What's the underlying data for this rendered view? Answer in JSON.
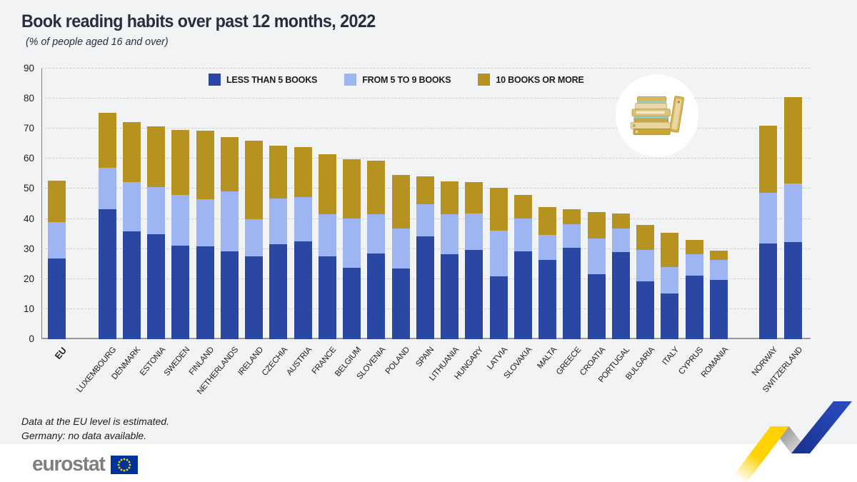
{
  "page": {
    "title": "Book reading habits over past 12 months, 2022",
    "subtitle": "(% of people aged 16 and over)"
  },
  "notes": {
    "line1": "Data at the EU level is estimated.",
    "line2": "Germany: no data available."
  },
  "logo": {
    "text": "eurostat"
  },
  "icons": {
    "books_icon": "stack-of-books",
    "flag_icon": "eu-flag",
    "zigzag_icon": "eurostat-zigzag-arrow"
  },
  "colors": {
    "background": "#f2f3f4",
    "footer_band": "#ffffff",
    "title_text": "#272e3e",
    "axis_text": "#1d1d1b",
    "less_than_5": "#2a47a3",
    "from_5_to_9": "#9db5f3",
    "ten_or_more": "#b69320",
    "logo_gray": "#7f7f7f",
    "flag_blue": "#003399",
    "star_yellow": "#ffcc00",
    "zigzag_yellow": "#ffd200",
    "zigzag_blue": "#2344ad"
  },
  "chart_data": {
    "type": "bar",
    "stacked": true,
    "title": "Book reading habits over past 12 months, 2022",
    "subtitle": "(% of people aged 16 and over)",
    "xlabel": "",
    "ylabel": "% of people aged 16 and over",
    "ylim": [
      0,
      90
    ],
    "yticks": [
      0,
      10,
      20,
      30,
      40,
      50,
      60,
      70,
      80,
      90
    ],
    "grid": true,
    "legend_position": "top-center",
    "gaps_after": [
      "EU",
      "ROMANIA"
    ],
    "categories": [
      "EU",
      "LUXEMBOURG",
      "DENMARK",
      "ESTONIA",
      "SWEDEN",
      "FINLAND",
      "NETHERLANDS",
      "IRELAND",
      "CZECHIA",
      "AUSTRIA",
      "FRANCE",
      "BELGIUM",
      "SLOVENIA",
      "POLAND",
      "SPAIN",
      "LITHUANIA",
      "HUNGARY",
      "LATVIA",
      "SLOVAKIA",
      "MALTA",
      "GREECE",
      "CROATIA",
      "PORTUGAL",
      "BULGARIA",
      "ITALY",
      "CYPRUS",
      "ROMANIA",
      "NORWAY",
      "SWITZERLAND"
    ],
    "series": [
      {
        "name": "LESS THAN 5 BOOKS",
        "color": "#2a47a3",
        "values": [
          26.8,
          43.3,
          35.9,
          34.8,
          31.2,
          30.9,
          29.2,
          27.6,
          31.6,
          32.6,
          27.6,
          23.8,
          28.4,
          23.6,
          34.1,
          28.2,
          29.7,
          20.9,
          29.2,
          26.4,
          30.4,
          21.7,
          29.0,
          19.3,
          15.2,
          21.2,
          19.8,
          31.9,
          32.3
        ]
      },
      {
        "name": "FROM 5 TO 9 BOOKS",
        "color": "#9db5f3",
        "values": [
          12.2,
          13.8,
          16.3,
          15.9,
          16.8,
          15.7,
          20.0,
          12.3,
          15.1,
          14.7,
          13.9,
          16.4,
          13.1,
          13.3,
          10.8,
          13.3,
          12.1,
          15.1,
          10.9,
          8.2,
          7.9,
          11.7,
          7.9,
          10.5,
          8.7,
          7.1,
          6.5,
          16.9,
          19.4
        ]
      },
      {
        "name": "10 BOOKS OR MORE",
        "color": "#b69320",
        "values": [
          13.8,
          18.2,
          19.9,
          20.0,
          21.6,
          22.8,
          18.0,
          26.2,
          17.6,
          16.6,
          20.1,
          19.7,
          17.9,
          17.7,
          9.3,
          10.9,
          10.5,
          14.3,
          7.9,
          9.4,
          4.9,
          8.8,
          4.9,
          8.1,
          11.5,
          4.8,
          3.1,
          22.1,
          28.8
        ]
      }
    ],
    "totals": [
      52.8,
      75.3,
      72.1,
      70.7,
      69.6,
      69.4,
      67.2,
      66.1,
      64.3,
      63.9,
      61.6,
      59.9,
      59.4,
      54.6,
      54.2,
      52.4,
      52.3,
      50.3,
      48.0,
      44.0,
      43.2,
      42.2,
      41.8,
      37.9,
      35.4,
      33.1,
      29.4,
      70.9,
      80.5
    ]
  }
}
